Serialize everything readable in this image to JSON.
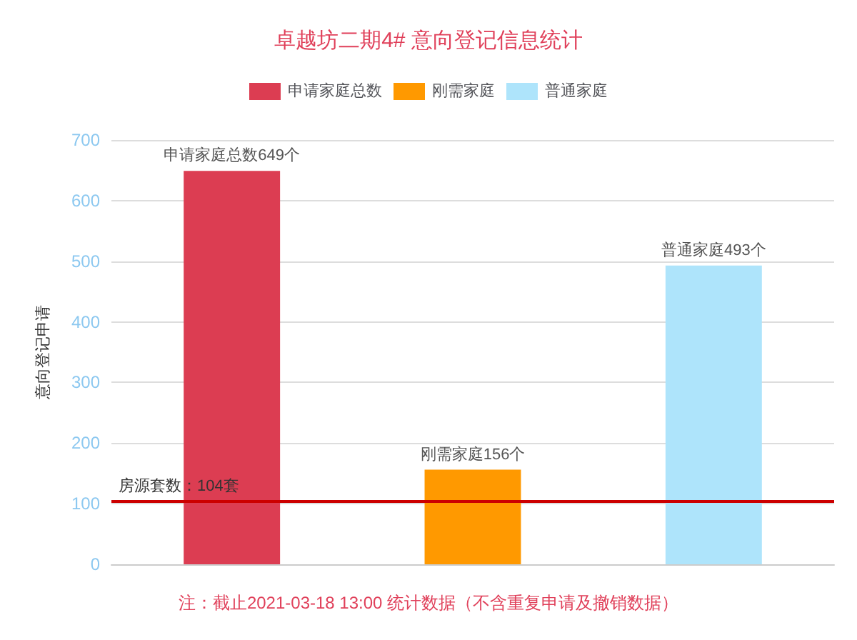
{
  "chart_data": {
    "type": "bar",
    "title": "卓越坊二期4# 意向登记信息统计",
    "ylabel": "意向登记申请",
    "categories": [
      null,
      null,
      null
    ],
    "series": [
      {
        "name": "申请家庭总数",
        "color": "#dc3d52",
        "values": [
          649,
          null,
          null
        ],
        "value_labels": [
          "申请家庭总数649个",
          null,
          null
        ]
      },
      {
        "name": "刚需家庭",
        "color": "#ff9900",
        "values": [
          null,
          156,
          null
        ],
        "value_labels": [
          null,
          "刚需家庭156个",
          null
        ]
      },
      {
        "name": "普通家庭",
        "color": "#aee4fb",
        "values": [
          null,
          null,
          493
        ],
        "value_labels": [
          null,
          null,
          "普通家庭493个"
        ]
      }
    ],
    "ylim": [
      0,
      700
    ],
    "yticks": [
      0,
      100,
      200,
      300,
      400,
      500,
      600,
      700
    ],
    "grid": "y",
    "legend": "top",
    "ref_lines": [
      {
        "axis": "y",
        "value": 104,
        "label": "房源套数：104套",
        "color": "#cc0000"
      }
    ],
    "annotations": [
      "注：截止2021-03-18 13:00 统计数据（不含重复申请及撤销数据）"
    ]
  }
}
